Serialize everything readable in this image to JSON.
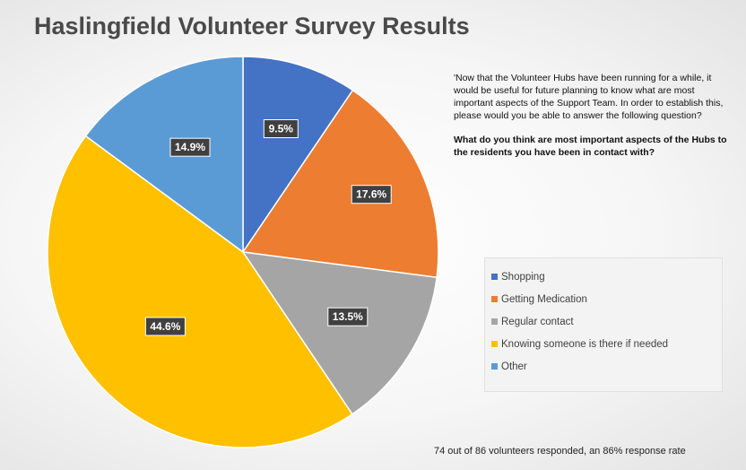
{
  "title": "Haslingfield Volunteer Survey Results",
  "question_text": "'Now that the Volunteer Hubs have been running for a while, it would be useful for future planning to know what are most important aspects of the Support Team. In order to establish this, please would you be able to answer the following question?",
  "question_bold": "What do you think are most important aspects of the Hubs to the residents you have been in contact with?",
  "footnote": "74 out of 86 volunteers responded, an 86% response rate",
  "chart_data": {
    "type": "pie",
    "title": "Haslingfield Volunteer Survey Results",
    "legend_position": "right",
    "start_angle": "12 o'clock",
    "direction": "clockwise",
    "slices": [
      {
        "label": "Shopping",
        "value": 9.5,
        "display": "9.5%",
        "color": "#4472c4"
      },
      {
        "label": "Getting Medication",
        "value": 17.6,
        "display": "17.6%",
        "color": "#ed7d31"
      },
      {
        "label": "Regular contact",
        "value": 13.5,
        "display": "13.5%",
        "color": "#a5a5a5"
      },
      {
        "label": "Knowing someone is there if needed",
        "value": 44.6,
        "display": "44.6%",
        "color": "#ffc000"
      },
      {
        "label": "Other",
        "value": 14.9,
        "display": "14.9%",
        "color": "#5b9bd5"
      }
    ]
  }
}
